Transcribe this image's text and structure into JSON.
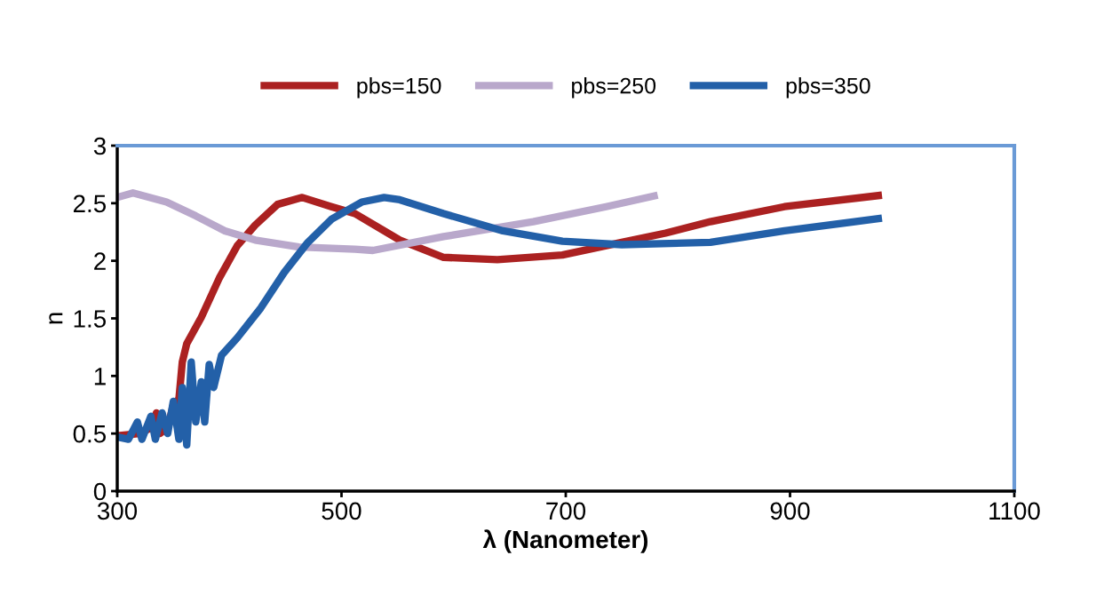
{
  "chart_data": {
    "type": "line",
    "xlabel": "λ (Nanometer)",
    "ylabel": "n",
    "xlim": [
      300,
      1100
    ],
    "xticks": [
      300,
      500,
      700,
      900,
      1100
    ],
    "ylim": [
      0,
      3
    ],
    "yticks": [
      0,
      0.5,
      1,
      1.5,
      2,
      2.5,
      3
    ],
    "grid": false,
    "legend": "top",
    "marker": "none",
    "line_style": "solid",
    "series": [
      {
        "name": "pbs=150",
        "color": "#ab2121",
        "x": [
          300,
          320,
          330,
          335,
          338,
          345,
          350,
          355,
          358,
          362,
          375,
          391,
          407,
          423,
          443,
          465,
          491,
          512,
          552,
          591,
          639,
          697,
          750,
          789,
          829,
          895,
          982
        ],
        "values": [
          0.48,
          0.5,
          0.55,
          0.68,
          0.5,
          0.55,
          0.75,
          0.8,
          1.12,
          1.28,
          1.51,
          1.85,
          2.13,
          2.31,
          2.49,
          2.55,
          2.47,
          2.41,
          2.18,
          2.03,
          2.01,
          2.05,
          2.16,
          2.24,
          2.34,
          2.47,
          2.57
        ]
      },
      {
        "name": "pbs=250",
        "color": "#b9a8cb",
        "x": [
          300,
          314,
          344,
          370,
          396,
          423,
          462,
          512,
          528,
          591,
          671,
          736,
          782
        ],
        "values": [
          2.55,
          2.59,
          2.51,
          2.39,
          2.26,
          2.18,
          2.12,
          2.1,
          2.09,
          2.21,
          2.34,
          2.47,
          2.57
        ]
      },
      {
        "name": "pbs=350",
        "color": "#2360a8",
        "x": [
          300,
          310,
          318,
          322,
          330,
          334,
          340,
          345,
          350,
          355,
          358,
          362,
          366,
          370,
          375,
          378,
          382,
          386,
          393,
          407,
          428,
          449,
          470,
          491,
          518,
          538,
          552,
          591,
          644,
          697,
          750,
          829,
          895,
          982
        ],
        "values": [
          0.47,
          0.45,
          0.6,
          0.45,
          0.65,
          0.45,
          0.68,
          0.5,
          0.78,
          0.45,
          0.9,
          0.4,
          1.12,
          0.6,
          0.95,
          0.6,
          1.1,
          0.9,
          1.18,
          1.33,
          1.59,
          1.9,
          2.16,
          2.36,
          2.51,
          2.55,
          2.53,
          2.41,
          2.26,
          2.17,
          2.14,
          2.16,
          2.26,
          2.37
        ]
      }
    ]
  }
}
